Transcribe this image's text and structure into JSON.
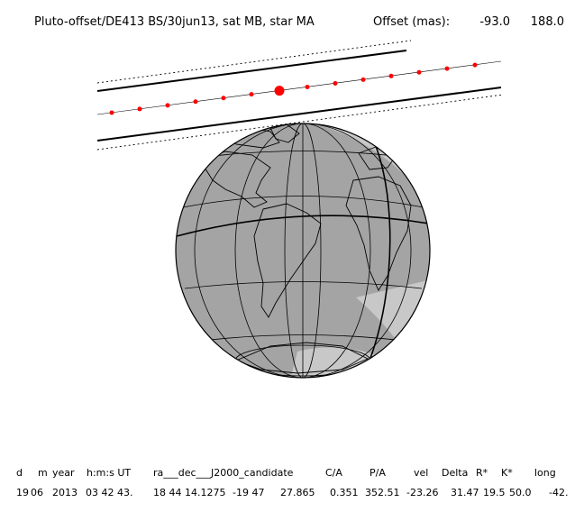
{
  "title": {
    "left": "Pluto-offset/DE413 BS/30jun13, sat MB, star MA",
    "offset_label": "Offset (mas):",
    "offset_ra": "-93.0",
    "offset_dec": "188.0"
  },
  "table": {
    "headers": [
      "d",
      "m",
      "year",
      "h:m:s UT",
      "ra___dec___J2000_candidate",
      "C/A",
      "P/A",
      "vel",
      "Delta",
      "R*",
      "K*",
      "long"
    ],
    "values": [
      "19",
      "06",
      "2013",
      "03 42 43.",
      "18 44 14.1275",
      "-19 47",
      "27.865",
      "0.351",
      "352.51",
      "-23.26",
      "31.47",
      "19.5",
      "50.0",
      "-42."
    ]
  },
  "event": {
    "type": "stellar occultation shadow path",
    "path_dot_count": 14,
    "closest_approach_marker": "large red dot",
    "globe_center_lon_deg": -42,
    "colors": {
      "path_dots": "#ff0000",
      "globe_day": "#c8c8c8",
      "globe_night": "#a4a4a4",
      "lines": "#000000"
    }
  }
}
